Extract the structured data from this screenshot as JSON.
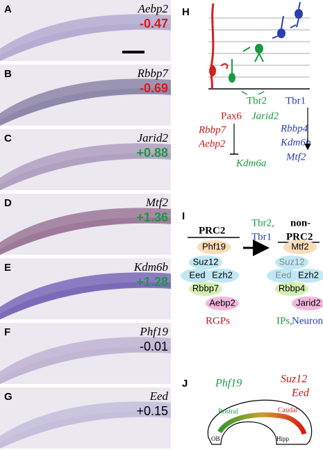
{
  "panels": [
    {
      "letter": "A",
      "gene": "Aebp2",
      "value": "-0.47"
    },
    {
      "letter": "B",
      "gene": "Rbbp7",
      "value": "-0.69"
    },
    {
      "letter": "C",
      "gene": "Jarid2",
      "value": "+0.88"
    },
    {
      "letter": "D",
      "gene": "Mtf2",
      "value": "+1.36"
    },
    {
      "letter": "E",
      "gene": "Kdm6b",
      "value": "+1.28"
    },
    {
      "letter": "F",
      "gene": "Phf19",
      "value": "-0.01"
    },
    {
      "letter": "G",
      "gene": "Eed",
      "value": "+0.15"
    }
  ],
  "h": {
    "letter": "H",
    "tbr2": "Tbr2",
    "tbr1": "Tbr1",
    "pax6": "Pax6",
    "jarid2": "Jarid2",
    "rbbp7": "Rbbp7",
    "aebp2": "Aebp2",
    "rbbp4": "Rbbp4",
    "kdm6b": "Kdm6b",
    "mtf2": "Mtf2",
    "kdm6a": "Kdm6a"
  },
  "i": {
    "letter": "I",
    "left_title": "PRC2",
    "arrow_top": "Tbr2,",
    "arrow_bottom": "Tbr1",
    "right_title_1": "non-",
    "right_title_2": "PRC2",
    "left": [
      "Phf19",
      "Suz12",
      "Eed",
      "Ezh2",
      "Rbbp7",
      "Aebp2"
    ],
    "right": [
      "Mtf2",
      "Suz12",
      "Eed",
      "Ezh2",
      "Rbbp4",
      "Jarid2"
    ],
    "left_caption": "RGPs",
    "right_caption_1": "IPs,",
    "right_caption_2": "Neurons"
  },
  "j": {
    "letter": "J",
    "phf19": "Phf19",
    "suz12": "Suz12",
    "eed": "Eed",
    "rostral": "Rostral",
    "caudal": "Caudal",
    "ob": "OB",
    "hipp": "Hipp"
  }
}
